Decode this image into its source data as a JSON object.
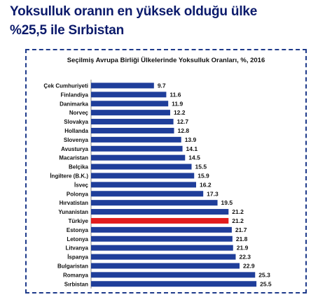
{
  "headline": {
    "line1": "Yoksulluk oranın en yüksek olduğu ülke",
    "line2": "%25,5 ile Sırbistan"
  },
  "colors": {
    "headline": "#0b1a6b",
    "bar": "#1f3e9a",
    "highlight": "#e11c1c",
    "frame": "#1e3a8a"
  },
  "chart_data": {
    "type": "bar",
    "orientation": "horizontal",
    "title": "Seçilmiş Avrupa Birliği Ülkelerinde Yoksulluk Oranları, %, 2016",
    "categories": [
      "Çek Cumhuriyeti",
      "Finlandiya",
      "Danimarka",
      "Norveç",
      "Slovakya",
      "Hollanda",
      "Slovenya",
      "Avusturya",
      "Macaristan",
      "Belçika",
      "İngiltere (B.K.)",
      "İsveç",
      "Polonya",
      "Hırvatistan",
      "Yunanistan",
      "Türkiye",
      "Estonya",
      "Letonya",
      "Litvanya",
      "İspanya",
      "Bulgaristan",
      "Romanya",
      "Sırbistan"
    ],
    "values": [
      9.7,
      11.6,
      11.9,
      12.2,
      12.7,
      12.8,
      13.9,
      14.1,
      14.5,
      15.5,
      15.9,
      16.2,
      17.3,
      19.5,
      21.2,
      21.2,
      21.7,
      21.8,
      21.9,
      22.3,
      22.9,
      25.3,
      25.5
    ],
    "value_labels": [
      "9.7",
      "11.6",
      "11.9",
      "12.2",
      "12.7",
      "12.8",
      "13.9",
      "14.1",
      "14.5",
      "15.5",
      "15.9",
      "16.2",
      "17.3",
      "19.5",
      "21.2",
      "21.2",
      "21.7",
      "21.8",
      "21.9",
      "22.3",
      "22.9",
      "25.3",
      "25.5"
    ],
    "highlight": "Türkiye",
    "xlim": [
      0,
      27
    ],
    "grid": false,
    "legend": "none"
  }
}
